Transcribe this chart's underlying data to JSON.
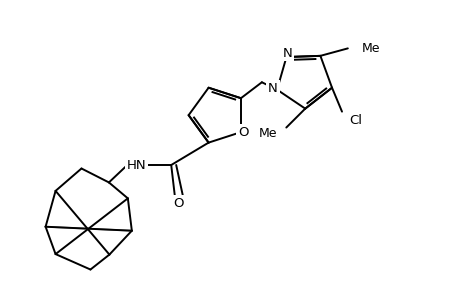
{
  "background_color": "#ffffff",
  "line_color": "#000000",
  "line_width": 1.4,
  "font_size": 9.5,
  "fig_width": 4.6,
  "fig_height": 3.0,
  "dpi": 100,
  "xlim": [
    0,
    9.2
  ],
  "ylim": [
    0,
    6.0
  ]
}
